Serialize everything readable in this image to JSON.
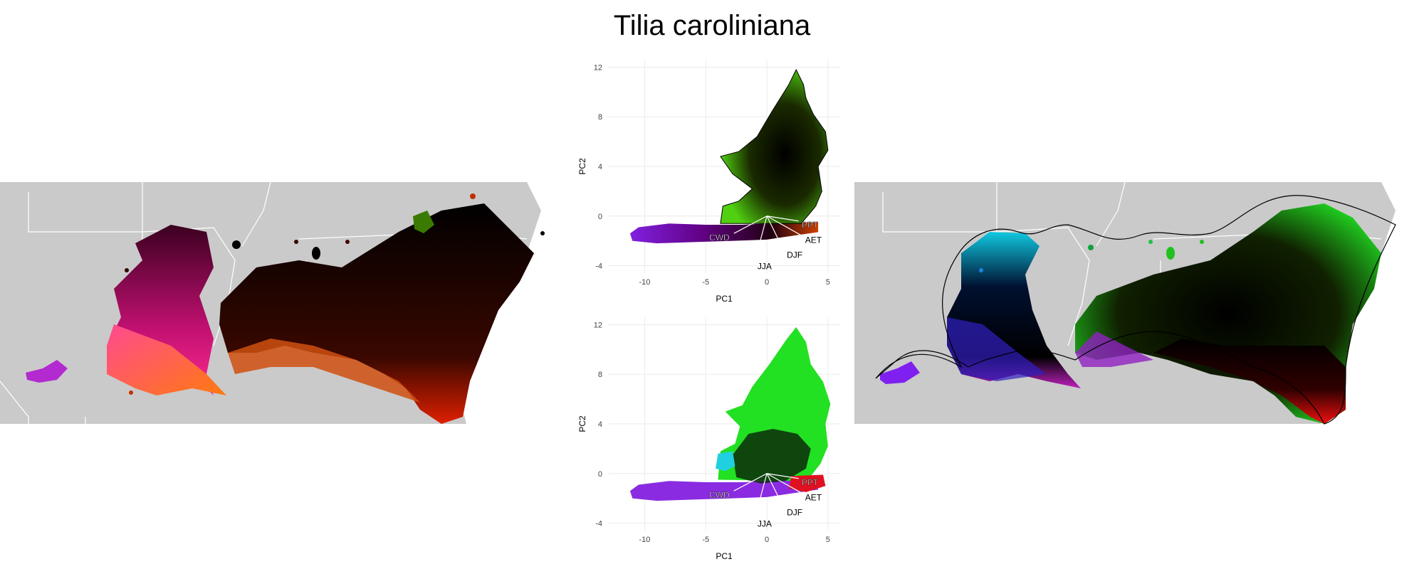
{
  "title": "Tilia caroliniana",
  "chart_data": [
    {
      "type": "scatter",
      "panel": "climate space (top)",
      "xlabel": "PC1",
      "ylabel": "PC2",
      "xlim": [
        -13,
        6
      ],
      "ylim": [
        -4.6,
        12.6
      ],
      "xticks": [
        -10,
        -5,
        0,
        5
      ],
      "yticks": [
        -4,
        0,
        4,
        8,
        12
      ],
      "grid": true,
      "vectors": [
        {
          "label": "PPT",
          "x": 2.6,
          "y": -0.4
        },
        {
          "label": "AET",
          "x": 2.9,
          "y": -1.6
        },
        {
          "label": "DJF",
          "x": 1.4,
          "y": -2.8
        },
        {
          "label": "JJA",
          "x": -1.0,
          "y": -3.7
        },
        {
          "label": "CWD",
          "x": -2.7,
          "y": -1.4
        }
      ]
    },
    {
      "type": "scatter",
      "panel": "climate space (bottom)",
      "xlabel": "PC1",
      "ylabel": "PC2",
      "xlim": [
        -13,
        6
      ],
      "ylim": [
        -4.6,
        12.6
      ],
      "xticks": [
        -10,
        -5,
        0,
        5
      ],
      "yticks": [
        -4,
        0,
        4,
        8,
        12
      ],
      "grid": true,
      "vectors": [
        {
          "label": "PPT",
          "x": 2.6,
          "y": -0.4
        },
        {
          "label": "AET",
          "x": 2.9,
          "y": -1.6
        },
        {
          "label": "DJF",
          "x": 1.4,
          "y": -2.8
        },
        {
          "label": "JJA",
          "x": -1.0,
          "y": -3.7
        },
        {
          "label": "CWD",
          "x": -2.7,
          "y": -1.4
        }
      ]
    }
  ],
  "colors": {
    "land": "#cacaca",
    "border": "#ffffff",
    "grid": "#ebebeb",
    "purple": "#8a2be2",
    "magenta": "#ff1aa0",
    "orange": "#ff7a1a",
    "red": "#e01010",
    "green": "#22e022",
    "cyan": "#20d0e0",
    "black": "#000000"
  }
}
